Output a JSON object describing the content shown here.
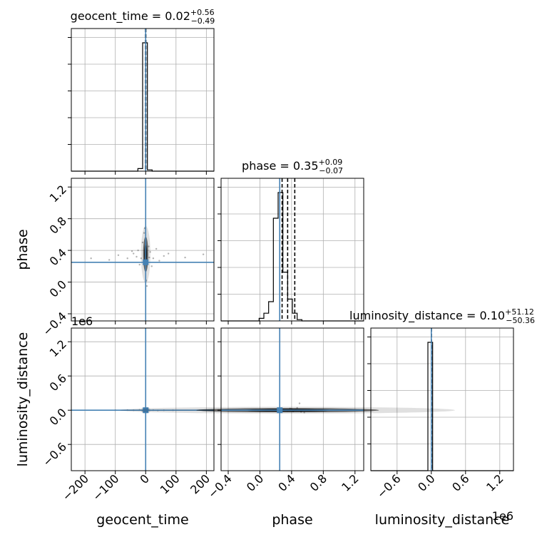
{
  "chart_data": {
    "type": "corner",
    "parameters": [
      "geocent_time",
      "phase",
      "luminosity_distance"
    ],
    "truth_color": "#4682b4",
    "grid": true,
    "titles": [
      {
        "param": "geocent_time",
        "prefix": "geocent_time = ",
        "median": "0.02",
        "plus": "+0.56",
        "minus": "−0.49"
      },
      {
        "param": "phase",
        "prefix": "phase = ",
        "median": "0.35",
        "plus": "+0.09",
        "minus": "−0.07"
      },
      {
        "param": "luminosity_distance",
        "prefix": "luminosity_distance = ",
        "median": "0.10",
        "plus": "+51.12",
        "minus": "−50.36"
      }
    ],
    "axis_labels": {
      "x": [
        "geocent_time",
        "phase",
        "luminosity_distance"
      ],
      "y": [
        "phase",
        "luminosity_distance"
      ]
    },
    "x_ticks": {
      "geocent_time": [
        "−200",
        "−100",
        "0",
        "100",
        "200"
      ],
      "phase": [
        "−0.4",
        "0.0",
        "0.4",
        "0.8",
        "1.2"
      ],
      "luminosity_distance": [
        "−0.6",
        "0.0",
        "0.6",
        "1.2"
      ]
    },
    "y_ticks": {
      "phase": [
        "−0.4",
        "0.0",
        "0.4",
        "0.8",
        "1.2"
      ],
      "luminosity_distance": [
        "−0.6",
        "0.0",
        "0.6",
        "1.2"
      ]
    },
    "offset_labels": {
      "luminosity_distance_y": "1e6",
      "luminosity_distance_x": "1e6"
    },
    "ranges": {
      "geocent_time": [
        -245,
        225
      ],
      "phase": [
        -0.49,
        1.31
      ],
      "luminosity_distance": [
        -1.06,
        1.44
      ]
    },
    "truths": {
      "geocent_time": 0,
      "phase": 0.25,
      "luminosity_distance": 0
    },
    "quantiles": {
      "geocent_time": [
        -0.47,
        0.02,
        0.58
      ],
      "phase": [
        0.28,
        0.35,
        0.44
      ],
      "luminosity_distance": [
        -5e-05,
        1e-07,
        5e-05
      ]
    },
    "histograms": {
      "geocent_time": {
        "edges": [
          -245,
          -229.3,
          -213.7,
          -198,
          -182.3,
          -166.7,
          -151,
          -135.3,
          -119.7,
          -104,
          -88.3,
          -72.7,
          -57,
          -41.3,
          -25.7,
          -10,
          5.7,
          21.3,
          37,
          52.7,
          68.3,
          84,
          99.7,
          115.3,
          131,
          146.7,
          162.3,
          178,
          193.7,
          209.3,
          225
        ],
        "counts": [
          0,
          0,
          0,
          0,
          0,
          0,
          0,
          0,
          0,
          0,
          0,
          0,
          0,
          0,
          2,
          100,
          1,
          0,
          0,
          0,
          0,
          0,
          0,
          0,
          0,
          0,
          0,
          0,
          0,
          0
        ]
      },
      "phase": {
        "edges": [
          -0.49,
          -0.43,
          -0.37,
          -0.31,
          -0.25,
          -0.19,
          -0.13,
          -0.07,
          -0.01,
          0.05,
          0.11,
          0.17,
          0.23,
          0.29,
          0.35,
          0.41,
          0.47,
          0.53,
          0.59,
          0.65,
          0.71,
          0.77,
          0.83,
          0.89,
          0.95,
          1.01,
          1.07,
          1.13,
          1.19,
          1.25,
          1.31
        ],
        "counts": [
          0,
          0,
          0,
          0,
          0,
          0,
          0,
          0,
          2,
          6,
          15,
          80,
          100,
          38,
          17,
          6,
          1,
          0,
          0,
          0,
          0,
          0,
          0,
          0,
          0,
          0,
          0,
          0,
          0,
          0
        ]
      },
      "luminosity_distance": {
        "edges": [
          -1.06,
          -0.977,
          -0.893,
          -0.81,
          -0.727,
          -0.643,
          -0.56,
          -0.477,
          -0.393,
          -0.31,
          -0.227,
          -0.143,
          -0.06,
          0.023,
          0.107,
          0.19,
          0.273,
          0.357,
          0.44,
          0.523,
          0.607,
          0.69,
          0.773,
          0.857,
          0.94,
          1.023,
          1.107,
          1.19,
          1.273,
          1.357,
          1.44
        ],
        "counts": [
          0,
          0,
          0,
          0,
          0,
          0,
          0,
          0,
          0,
          0,
          0,
          0,
          100,
          0,
          0,
          0,
          0,
          0,
          0,
          0,
          0,
          0,
          0,
          0,
          0,
          0,
          0,
          0,
          0,
          0
        ]
      }
    },
    "scatter_points": {
      "phase_vs_geocent_time": [
        [
          -60,
          0.3
        ],
        [
          -40,
          0.36
        ],
        [
          -30,
          0.32
        ],
        [
          -25,
          0.4
        ],
        [
          -15,
          0.3
        ],
        [
          -10,
          0.5
        ],
        [
          -8,
          0.25
        ],
        [
          10,
          0.45
        ],
        [
          12,
          0.31
        ],
        [
          15,
          0.38
        ],
        [
          25,
          0.3
        ],
        [
          35,
          0.42
        ],
        [
          60,
          0.33
        ],
        [
          75,
          0.36
        ],
        [
          -90,
          0.34
        ],
        [
          -120,
          0.28
        ],
        [
          -180,
          0.3
        ],
        [
          130,
          0.31
        ],
        [
          190,
          0.35
        ],
        [
          -5,
          0.62
        ],
        [
          4,
          -0.05
        ],
        [
          -3,
          0.68
        ],
        [
          2,
          0.02
        ],
        [
          20,
          0.2
        ],
        [
          -20,
          0.22
        ],
        [
          45,
          0.27
        ],
        [
          -45,
          0.39
        ]
      ],
      "luminosity_distance_vs_geocent_time": [
        [
          -40,
          0.0
        ],
        [
          -20,
          0.005
        ],
        [
          -10,
          -0.005
        ],
        [
          10,
          0.005
        ],
        [
          25,
          0.002
        ],
        [
          40,
          -0.003
        ],
        [
          60,
          0.0
        ],
        [
          -60,
          0.002
        ],
        [
          90,
          0.0
        ],
        [
          -100,
          0.0
        ]
      ],
      "luminosity_distance_vs_phase": [
        [
          0.3,
          0.01
        ],
        [
          0.35,
          -0.01
        ],
        [
          0.4,
          0.02
        ],
        [
          0.42,
          -0.02
        ],
        [
          0.45,
          0.01
        ],
        [
          0.5,
          0.0
        ],
        [
          0.55,
          0.005
        ],
        [
          0.6,
          0.0
        ],
        [
          0.25,
          0.0
        ],
        [
          0.38,
          0.03
        ],
        [
          0.47,
          0.04
        ],
        [
          0.52,
          -0.03
        ],
        [
          0.62,
          0.01
        ],
        [
          0.5,
          0.12
        ],
        [
          0.56,
          -0.04
        ]
      ]
    }
  }
}
